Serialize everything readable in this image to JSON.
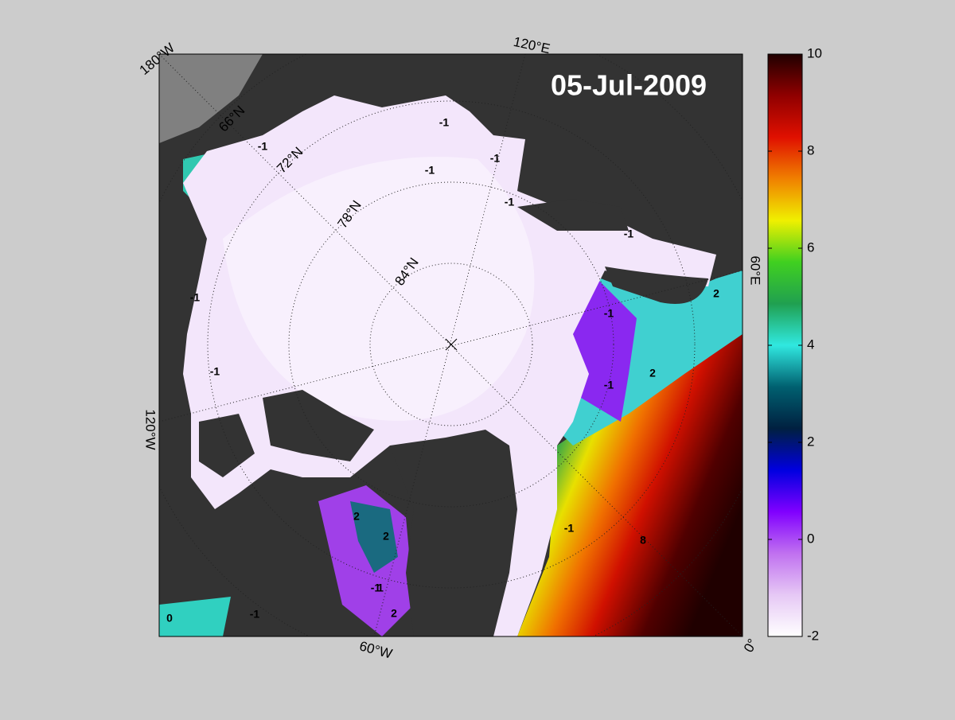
{
  "map": {
    "date": "05-Jul-2009",
    "longitude_labels": [
      "180°W",
      "120°E",
      "60°E",
      "0°",
      "60°W",
      "120°W"
    ],
    "latitude_labels": [
      "66°N",
      "72°N",
      "78°N",
      "84°N"
    ],
    "contour_labels": [
      "-1",
      "-1",
      "-1",
      "-1",
      "-1",
      "-1",
      "-1",
      "-1",
      "-1",
      "-1",
      "-1",
      "-1",
      "-1",
      "2",
      "2",
      "2",
      "2",
      "2",
      "8",
      "0",
      "1"
    ]
  },
  "colorbar": {
    "lim": [
      -2,
      10
    ],
    "ticks": [
      -2,
      0,
      2,
      4,
      6,
      8,
      10
    ],
    "colormap": [
      "#ffffff",
      "#e6c8f5",
      "#c070f0",
      "#8000ff",
      "#0000e0",
      "#002040",
      "#006070",
      "#30e8e0",
      "#20a050",
      "#40d020",
      "#f0f000",
      "#f08000",
      "#e01000",
      "#900000",
      "#200000"
    ]
  }
}
